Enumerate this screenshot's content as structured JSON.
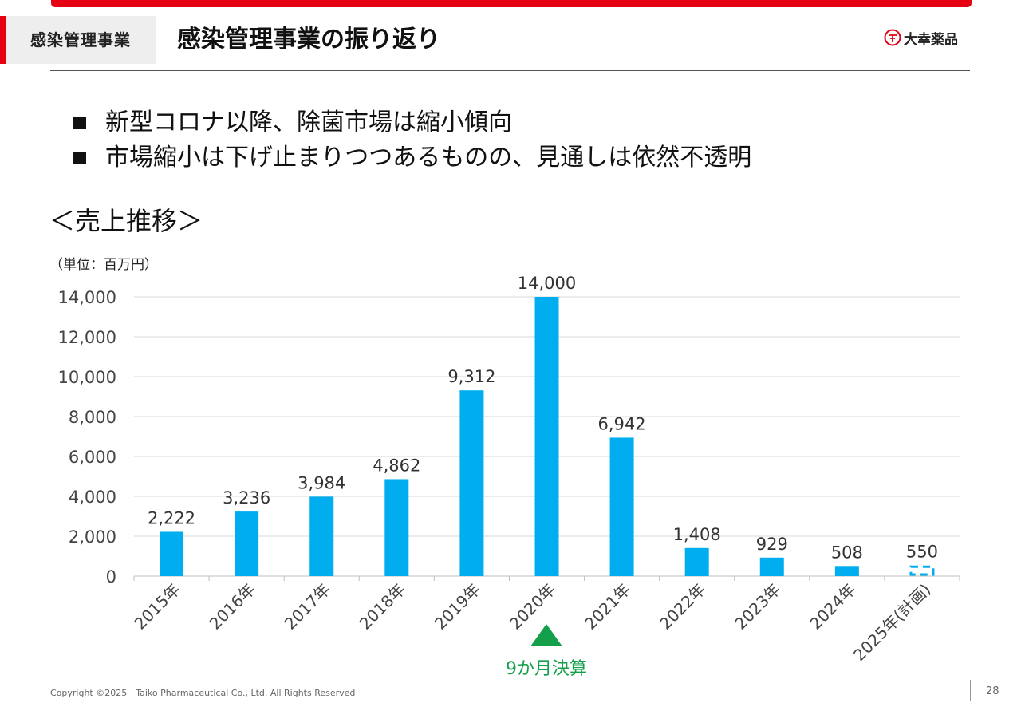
{
  "header": {
    "section_tag": "感染管理事業",
    "title": "感染管理事業の振り返り",
    "logo_text": "大幸薬品"
  },
  "bullets": [
    "新型コロナ以降、除菌市場は縮小傾向",
    "市場縮小は下げ止まりつつあるものの、見通しは依然不透明"
  ],
  "chart_heading": "＜売上推移＞",
  "unit_label": "（単位：百万円）",
  "chart_data": {
    "type": "bar",
    "categories": [
      "2015年",
      "2016年",
      "2017年",
      "2018年",
      "2019年",
      "2020年",
      "2021年",
      "2022年",
      "2023年",
      "2024年",
      "2025年(計画)"
    ],
    "values": [
      2222,
      3236,
      3984,
      4862,
      9312,
      14000,
      6942,
      1408,
      929,
      508,
      550
    ],
    "data_labels": [
      "2,222",
      "3,236",
      "3,984",
      "4,862",
      "9,312",
      "14,000",
      "6,942",
      "1,408",
      "929",
      "508",
      "550"
    ],
    "planned": [
      false,
      false,
      false,
      false,
      false,
      false,
      false,
      false,
      false,
      false,
      true
    ],
    "ylim": [
      0,
      14000
    ],
    "yticks": [
      0,
      2000,
      4000,
      6000,
      8000,
      10000,
      12000,
      14000
    ],
    "ytick_labels": [
      "0",
      "2,000",
      "4,000",
      "6,000",
      "8,000",
      "10,000",
      "12,000",
      "14,000"
    ],
    "grid": true,
    "bar_color": "#00aeef"
  },
  "annotation": {
    "text": "9か月決算",
    "category": "2020年",
    "color": "#14a04b"
  },
  "footer": {
    "copyright": "Copyright ©2025　Taiko Pharmaceutical Co., Ltd. All Rights Reserved",
    "page_number": "28"
  }
}
